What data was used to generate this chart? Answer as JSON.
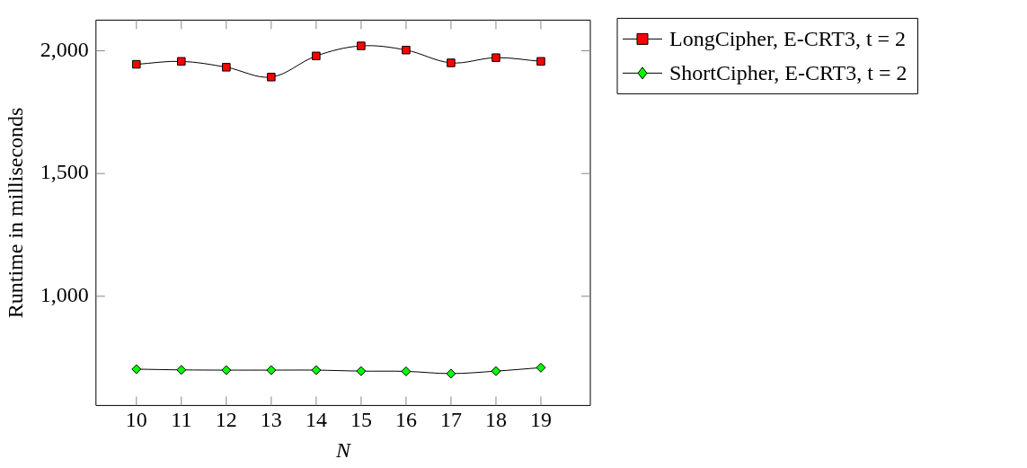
{
  "chart_data": {
    "type": "line",
    "xlabel": "N",
    "ylabel": "Runtime in milliseconds",
    "x": [
      10,
      11,
      12,
      13,
      14,
      15,
      16,
      17,
      18,
      19
    ],
    "series": [
      {
        "name": "LongCipher, E-CRT3, t = 2",
        "color": "#ff0000",
        "marker": "square",
        "values": [
          1945,
          1957,
          1933,
          1893,
          1979,
          2020,
          2003,
          1951,
          1972,
          1957
        ]
      },
      {
        "name": "ShortCipher, E-CRT3, t = 2",
        "color": "#00ff00",
        "marker": "diamond",
        "values": [
          703,
          700,
          699,
          699,
          699,
          695,
          694,
          685,
          695,
          709
        ]
      }
    ],
    "xlim": [
      9.1,
      20.1
    ],
    "xticks": [
      10,
      11,
      12,
      13,
      14,
      15,
      16,
      17,
      18,
      19
    ],
    "ylim": [
      555,
      2125
    ],
    "yticks": [
      {
        "value": 1000,
        "label": "1,000"
      },
      {
        "value": 1500,
        "label": "1,500"
      },
      {
        "value": 2000,
        "label": "2,000"
      }
    ],
    "grid": false,
    "legend": "top right"
  }
}
